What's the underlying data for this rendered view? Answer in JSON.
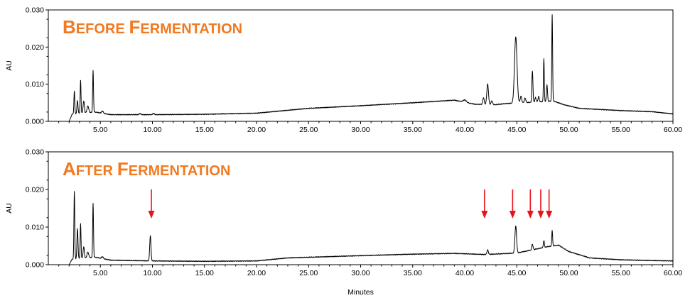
{
  "chart_data": [
    {
      "type": "line",
      "title": "Before Fermentation",
      "xlabel": "",
      "ylabel": "AU",
      "xlim": [
        0,
        60
      ],
      "ylim": [
        0,
        0.03
      ],
      "xticks": [
        "5.00",
        "10.00",
        "15.00",
        "20.00",
        "25.00",
        "30.00",
        "35.00",
        "40.00",
        "45.00",
        "50.00",
        "55.00",
        "60.00"
      ],
      "yticks": [
        "0.000",
        "0.010",
        "0.020",
        "0.030"
      ],
      "grid": false,
      "color": "#000000",
      "baseline": [
        [
          0.0,
          0.0
        ],
        [
          2.0,
          0.0
        ],
        [
          2.3,
          0.002
        ],
        [
          4.5,
          0.0025
        ],
        [
          6.0,
          0.0018
        ],
        [
          10.0,
          0.0018
        ],
        [
          15.0,
          0.0019
        ],
        [
          20.0,
          0.0022
        ],
        [
          25.0,
          0.0035
        ],
        [
          30.0,
          0.0042
        ],
        [
          35.0,
          0.005
        ],
        [
          39.0,
          0.0057
        ],
        [
          41.0,
          0.0046
        ],
        [
          43.0,
          0.0045
        ],
        [
          44.0,
          0.0048
        ],
        [
          47.0,
          0.0052
        ],
        [
          48.5,
          0.0055
        ],
        [
          49.5,
          0.0045
        ],
        [
          51.0,
          0.0035
        ],
        [
          55.0,
          0.0029
        ],
        [
          58.0,
          0.0026
        ],
        [
          60.0,
          0.002
        ]
      ],
      "peaks": [
        [
          2.5,
          0.0062,
          0.04
        ],
        [
          2.8,
          0.0035,
          0.05
        ],
        [
          3.1,
          0.0088,
          0.04
        ],
        [
          3.4,
          0.0032,
          0.06
        ],
        [
          3.8,
          0.0018,
          0.08
        ],
        [
          4.3,
          0.0112,
          0.04
        ],
        [
          5.2,
          0.0006,
          0.08
        ],
        [
          8.8,
          0.0003,
          0.08
        ],
        [
          10.1,
          0.0003,
          0.08
        ],
        [
          40.0,
          0.0006,
          0.15
        ],
        [
          41.8,
          0.0018,
          0.07
        ],
        [
          42.2,
          0.0055,
          0.08
        ],
        [
          42.6,
          0.001,
          0.07
        ],
        [
          44.9,
          0.0178,
          0.12
        ],
        [
          45.4,
          0.0018,
          0.07
        ],
        [
          45.8,
          0.0012,
          0.07
        ],
        [
          46.5,
          0.0085,
          0.05
        ],
        [
          46.8,
          0.0012,
          0.06
        ],
        [
          47.1,
          0.0015,
          0.06
        ],
        [
          47.6,
          0.0116,
          0.04
        ],
        [
          47.9,
          0.0045,
          0.05
        ],
        [
          48.4,
          0.0233,
          0.04
        ]
      ]
    },
    {
      "type": "line",
      "title": "After Fermentation",
      "xlabel": "Minutes",
      "ylabel": "AU",
      "xlim": [
        0,
        60
      ],
      "ylim": [
        0,
        0.03
      ],
      "xticks": [
        "5.00",
        "10.00",
        "15.00",
        "20.00",
        "25.00",
        "30.00",
        "35.00",
        "40.00",
        "45.00",
        "50.00",
        "55.00",
        "60.00"
      ],
      "yticks": [
        "0.000",
        "0.010",
        "0.020",
        "0.030"
      ],
      "grid": false,
      "color": "#000000",
      "baseline": [
        [
          0.0,
          0.0
        ],
        [
          2.0,
          0.0
        ],
        [
          2.3,
          0.0015
        ],
        [
          4.5,
          0.002
        ],
        [
          6.0,
          0.0012
        ],
        [
          10.0,
          0.001
        ],
        [
          15.0,
          0.0009
        ],
        [
          20.0,
          0.001
        ],
        [
          23.0,
          0.0018
        ],
        [
          30.0,
          0.0024
        ],
        [
          35.0,
          0.0028
        ],
        [
          39.0,
          0.003
        ],
        [
          42.0,
          0.0027
        ],
        [
          45.0,
          0.0031
        ],
        [
          48.0,
          0.0048
        ],
        [
          49.0,
          0.0052
        ],
        [
          50.0,
          0.0035
        ],
        [
          52.0,
          0.0018
        ],
        [
          55.0,
          0.0013
        ],
        [
          58.0,
          0.0011
        ],
        [
          60.0,
          0.001
        ]
      ],
      "peaks": [
        [
          2.5,
          0.018,
          0.04
        ],
        [
          2.8,
          0.008,
          0.05
        ],
        [
          3.1,
          0.0092,
          0.04
        ],
        [
          3.4,
          0.003,
          0.06
        ],
        [
          3.8,
          0.0015,
          0.08
        ],
        [
          4.3,
          0.0143,
          0.04
        ],
        [
          5.2,
          0.0005,
          0.08
        ],
        [
          9.8,
          0.0067,
          0.06
        ],
        [
          42.2,
          0.0012,
          0.07
        ],
        [
          44.9,
          0.0072,
          0.08
        ],
        [
          46.5,
          0.0015,
          0.06
        ],
        [
          47.6,
          0.0018,
          0.05
        ],
        [
          48.4,
          0.0042,
          0.04
        ]
      ],
      "arrows_x": [
        9.9,
        41.9,
        44.6,
        46.3,
        47.3,
        48.1
      ],
      "arrow_color": "#e8141c"
    }
  ]
}
